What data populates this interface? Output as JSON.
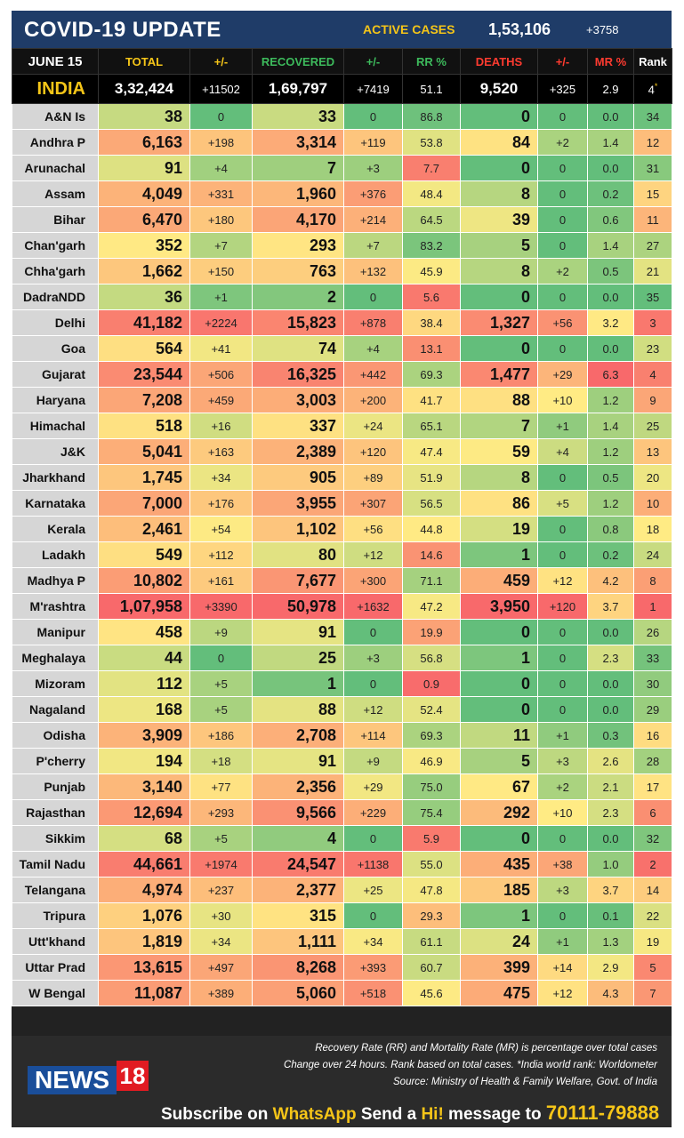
{
  "header": {
    "title": "COVID-19 UPDATE",
    "active_label": "ACTIVE CASES",
    "active_value": "1,53,106",
    "active_delta": "+3758"
  },
  "columns": [
    "JUNE 15",
    "TOTAL",
    "+/-",
    "RECOVERED",
    "+/-",
    "RR %",
    "DEATHS",
    "+/-",
    "MR %",
    "Rank"
  ],
  "column_colors": [
    "#ffffff",
    "#f5c518",
    "#f5c518",
    "#3dbb5c",
    "#3dbb5c",
    "#3dbb5c",
    "#ff3b30",
    "#ff3b30",
    "#ff3b30",
    "#ffffff"
  ],
  "india": {
    "name": "INDIA",
    "total": "3,32,424",
    "d_total": "+11502",
    "recovered": "1,69,797",
    "d_rec": "+7419",
    "rr": "51.1",
    "deaths": "9,520",
    "d_deaths": "+325",
    "mr": "2.9",
    "rank": "4",
    "rank_mark": "*"
  },
  "states": [
    {
      "name": "A&N Is",
      "total": "38",
      "d_total": "0",
      "recovered": "33",
      "d_rec": "0",
      "rr": "86.8",
      "deaths": "0",
      "d_deaths": "0",
      "mr": "0.0",
      "rank": "34"
    },
    {
      "name": "Andhra P",
      "total": "6,163",
      "d_total": "+198",
      "recovered": "3,314",
      "d_rec": "+119",
      "rr": "53.8",
      "deaths": "84",
      "d_deaths": "+2",
      "mr": "1.4",
      "rank": "12"
    },
    {
      "name": "Arunachal",
      "total": "91",
      "d_total": "+4",
      "recovered": "7",
      "d_rec": "+3",
      "rr": "7.7",
      "deaths": "0",
      "d_deaths": "0",
      "mr": "0.0",
      "rank": "31"
    },
    {
      "name": "Assam",
      "total": "4,049",
      "d_total": "+331",
      "recovered": "1,960",
      "d_rec": "+376",
      "rr": "48.4",
      "deaths": "8",
      "d_deaths": "0",
      "mr": "0.2",
      "rank": "15"
    },
    {
      "name": "Bihar",
      "total": "6,470",
      "d_total": "+180",
      "recovered": "4,170",
      "d_rec": "+214",
      "rr": "64.5",
      "deaths": "39",
      "d_deaths": "0",
      "mr": "0.6",
      "rank": "11"
    },
    {
      "name": "Chan'garh",
      "total": "352",
      "d_total": "+7",
      "recovered": "293",
      "d_rec": "+7",
      "rr": "83.2",
      "deaths": "5",
      "d_deaths": "0",
      "mr": "1.4",
      "rank": "27"
    },
    {
      "name": "Chha'garh",
      "total": "1,662",
      "d_total": "+150",
      "recovered": "763",
      "d_rec": "+132",
      "rr": "45.9",
      "deaths": "8",
      "d_deaths": "+2",
      "mr": "0.5",
      "rank": "21"
    },
    {
      "name": "DadraNDD",
      "total": "36",
      "d_total": "+1",
      "recovered": "2",
      "d_rec": "0",
      "rr": "5.6",
      "deaths": "0",
      "d_deaths": "0",
      "mr": "0.0",
      "rank": "35"
    },
    {
      "name": "Delhi",
      "total": "41,182",
      "d_total": "+2224",
      "recovered": "15,823",
      "d_rec": "+878",
      "rr": "38.4",
      "deaths": "1,327",
      "d_deaths": "+56",
      "mr": "3.2",
      "rank": "3"
    },
    {
      "name": "Goa",
      "total": "564",
      "d_total": "+41",
      "recovered": "74",
      "d_rec": "+4",
      "rr": "13.1",
      "deaths": "0",
      "d_deaths": "0",
      "mr": "0.0",
      "rank": "23"
    },
    {
      "name": "Gujarat",
      "total": "23,544",
      "d_total": "+506",
      "recovered": "16,325",
      "d_rec": "+442",
      "rr": "69.3",
      "deaths": "1,477",
      "d_deaths": "+29",
      "mr": "6.3",
      "rank": "4"
    },
    {
      "name": "Haryana",
      "total": "7,208",
      "d_total": "+459",
      "recovered": "3,003",
      "d_rec": "+200",
      "rr": "41.7",
      "deaths": "88",
      "d_deaths": "+10",
      "mr": "1.2",
      "rank": "9"
    },
    {
      "name": "Himachal",
      "total": "518",
      "d_total": "+16",
      "recovered": "337",
      "d_rec": "+24",
      "rr": "65.1",
      "deaths": "7",
      "d_deaths": "+1",
      "mr": "1.4",
      "rank": "25"
    },
    {
      "name": "J&K",
      "total": "5,041",
      "d_total": "+163",
      "recovered": "2,389",
      "d_rec": "+120",
      "rr": "47.4",
      "deaths": "59",
      "d_deaths": "+4",
      "mr": "1.2",
      "rank": "13"
    },
    {
      "name": "Jharkhand",
      "total": "1,745",
      "d_total": "+34",
      "recovered": "905",
      "d_rec": "+89",
      "rr": "51.9",
      "deaths": "8",
      "d_deaths": "0",
      "mr": "0.5",
      "rank": "20"
    },
    {
      "name": "Karnataka",
      "total": "7,000",
      "d_total": "+176",
      "recovered": "3,955",
      "d_rec": "+307",
      "rr": "56.5",
      "deaths": "86",
      "d_deaths": "+5",
      "mr": "1.2",
      "rank": "10"
    },
    {
      "name": "Kerala",
      "total": "2,461",
      "d_total": "+54",
      "recovered": "1,102",
      "d_rec": "+56",
      "rr": "44.8",
      "deaths": "19",
      "d_deaths": "0",
      "mr": "0.8",
      "rank": "18"
    },
    {
      "name": "Ladakh",
      "total": "549",
      "d_total": "+112",
      "recovered": "80",
      "d_rec": "+12",
      "rr": "14.6",
      "deaths": "1",
      "d_deaths": "0",
      "mr": "0.2",
      "rank": "24"
    },
    {
      "name": "Madhya P",
      "total": "10,802",
      "d_total": "+161",
      "recovered": "7,677",
      "d_rec": "+300",
      "rr": "71.1",
      "deaths": "459",
      "d_deaths": "+12",
      "mr": "4.2",
      "rank": "8"
    },
    {
      "name": "M'rashtra",
      "total": "1,07,958",
      "d_total": "+3390",
      "recovered": "50,978",
      "d_rec": "+1632",
      "rr": "47.2",
      "deaths": "3,950",
      "d_deaths": "+120",
      "mr": "3.7",
      "rank": "1"
    },
    {
      "name": "Manipur",
      "total": "458",
      "d_total": "+9",
      "recovered": "91",
      "d_rec": "0",
      "rr": "19.9",
      "deaths": "0",
      "d_deaths": "0",
      "mr": "0.0",
      "rank": "26"
    },
    {
      "name": "Meghalaya",
      "total": "44",
      "d_total": "0",
      "recovered": "25",
      "d_rec": "+3",
      "rr": "56.8",
      "deaths": "1",
      "d_deaths": "0",
      "mr": "2.3",
      "rank": "33"
    },
    {
      "name": "Mizoram",
      "total": "112",
      "d_total": "+5",
      "recovered": "1",
      "d_rec": "0",
      "rr": "0.9",
      "deaths": "0",
      "d_deaths": "0",
      "mr": "0.0",
      "rank": "30"
    },
    {
      "name": "Nagaland",
      "total": "168",
      "d_total": "+5",
      "recovered": "88",
      "d_rec": "+12",
      "rr": "52.4",
      "deaths": "0",
      "d_deaths": "0",
      "mr": "0.0",
      "rank": "29"
    },
    {
      "name": "Odisha",
      "total": "3,909",
      "d_total": "+186",
      "recovered": "2,708",
      "d_rec": "+114",
      "rr": "69.3",
      "deaths": "11",
      "d_deaths": "+1",
      "mr": "0.3",
      "rank": "16"
    },
    {
      "name": "P'cherry",
      "total": "194",
      "d_total": "+18",
      "recovered": "91",
      "d_rec": "+9",
      "rr": "46.9",
      "deaths": "5",
      "d_deaths": "+3",
      "mr": "2.6",
      "rank": "28"
    },
    {
      "name": "Punjab",
      "total": "3,140",
      "d_total": "+77",
      "recovered": "2,356",
      "d_rec": "+29",
      "rr": "75.0",
      "deaths": "67",
      "d_deaths": "+2",
      "mr": "2.1",
      "rank": "17"
    },
    {
      "name": "Rajasthan",
      "total": "12,694",
      "d_total": "+293",
      "recovered": "9,566",
      "d_rec": "+229",
      "rr": "75.4",
      "deaths": "292",
      "d_deaths": "+10",
      "mr": "2.3",
      "rank": "6"
    },
    {
      "name": "Sikkim",
      "total": "68",
      "d_total": "+5",
      "recovered": "4",
      "d_rec": "0",
      "rr": "5.9",
      "deaths": "0",
      "d_deaths": "0",
      "mr": "0.0",
      "rank": "32"
    },
    {
      "name": "Tamil Nadu",
      "total": "44,661",
      "d_total": "+1974",
      "recovered": "24,547",
      "d_rec": "+1138",
      "rr": "55.0",
      "deaths": "435",
      "d_deaths": "+38",
      "mr": "1.0",
      "rank": "2"
    },
    {
      "name": "Telangana",
      "total": "4,974",
      "d_total": "+237",
      "recovered": "2,377",
      "d_rec": "+25",
      "rr": "47.8",
      "deaths": "185",
      "d_deaths": "+3",
      "mr": "3.7",
      "rank": "14"
    },
    {
      "name": "Tripura",
      "total": "1,076",
      "d_total": "+30",
      "recovered": "315",
      "d_rec": "0",
      "rr": "29.3",
      "deaths": "1",
      "d_deaths": "0",
      "mr": "0.1",
      "rank": "22"
    },
    {
      "name": "Utt'khand",
      "total": "1,819",
      "d_total": "+34",
      "recovered": "1,111",
      "d_rec": "+34",
      "rr": "61.1",
      "deaths": "24",
      "d_deaths": "+1",
      "mr": "1.3",
      "rank": "19"
    },
    {
      "name": "Uttar Prad",
      "total": "13,615",
      "d_total": "+497",
      "recovered": "8,268",
      "d_rec": "+393",
      "rr": "60.7",
      "deaths": "399",
      "d_deaths": "+14",
      "mr": "2.9",
      "rank": "5"
    },
    {
      "name": "W Bengal",
      "total": "11,087",
      "d_total": "+389",
      "recovered": "5,060",
      "d_rec": "+518",
      "rr": "45.6",
      "deaths": "475",
      "d_deaths": "+12",
      "mr": "4.3",
      "rank": "7"
    }
  ],
  "footer": {
    "note1": "Recovery Rate (RR) and Mortality Rate (MR) is percentage over total cases",
    "note2": "Change over 24 hours. Rank based on total cases. *India world rank: Worldometer",
    "note3": "Source: Ministry of Health & Family Welfare, Govt. of India",
    "logo_text": "NEWS",
    "logo_num": "18",
    "sub_1": "Subscribe on ",
    "sub_wa": "WhatsApp",
    "sub_2": " Send a ",
    "sub_hi": "Hi!",
    "sub_3": " message to ",
    "sub_num": "70111-79888"
  }
}
